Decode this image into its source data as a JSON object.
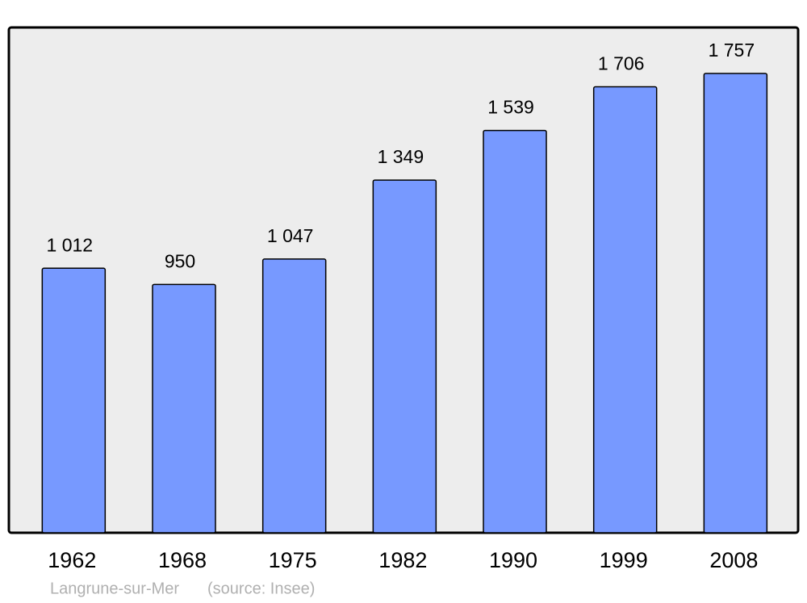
{
  "chart_data": {
    "type": "bar",
    "categories": [
      "1962",
      "1968",
      "1975",
      "1982",
      "1990",
      "1999",
      "2008"
    ],
    "values": [
      1012,
      950,
      1047,
      1349,
      1539,
      1706,
      1757
    ],
    "value_labels": [
      "1 012",
      "950",
      "1 047",
      "1 349",
      "1 539",
      "1 706",
      "1 757"
    ],
    "color": "#7799ff",
    "ylim": [
      0,
      1933
    ],
    "footer": {
      "place": "Langrune-sur-Mer",
      "source": "(source: Insee)"
    }
  }
}
